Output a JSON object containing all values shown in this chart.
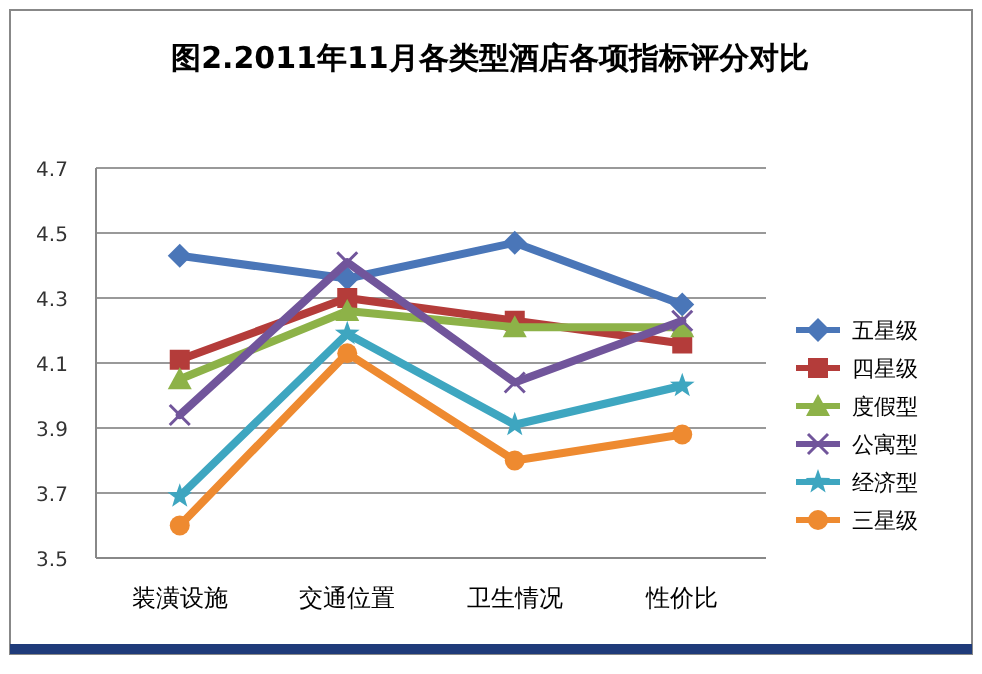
{
  "chart_data": {
    "type": "line",
    "title": "图2.2011年11月各类型酒店各项指标评分对比",
    "categories": [
      "装潢设施",
      "交通位置",
      "卫生情况",
      "性价比"
    ],
    "ylim": [
      3.5,
      4.7
    ],
    "yticks": [
      3.5,
      3.7,
      3.9,
      4.1,
      4.3,
      4.5,
      4.7
    ],
    "grid": "y",
    "legend": "right",
    "series": [
      {
        "name": "五星级",
        "color": "#4a76b8",
        "marker": "diamond",
        "values": [
          4.43,
          4.36,
          4.47,
          4.28
        ]
      },
      {
        "name": "四星级",
        "color": "#b43c3a",
        "marker": "square",
        "values": [
          4.11,
          4.3,
          4.23,
          4.16
        ]
      },
      {
        "name": "度假型",
        "color": "#8db248",
        "marker": "triangle",
        "values": [
          4.05,
          4.26,
          4.21,
          4.21
        ]
      },
      {
        "name": "公寓型",
        "color": "#71559b",
        "marker": "cross",
        "values": [
          3.94,
          4.41,
          4.04,
          4.23
        ]
      },
      {
        "name": "经济型",
        "color": "#3ea6c0",
        "marker": "star",
        "values": [
          3.69,
          4.19,
          3.91,
          4.03
        ]
      },
      {
        "name": "三星级",
        "color": "#ee8a30",
        "marker": "circle",
        "values": [
          3.6,
          4.13,
          3.8,
          3.88
        ]
      }
    ]
  }
}
